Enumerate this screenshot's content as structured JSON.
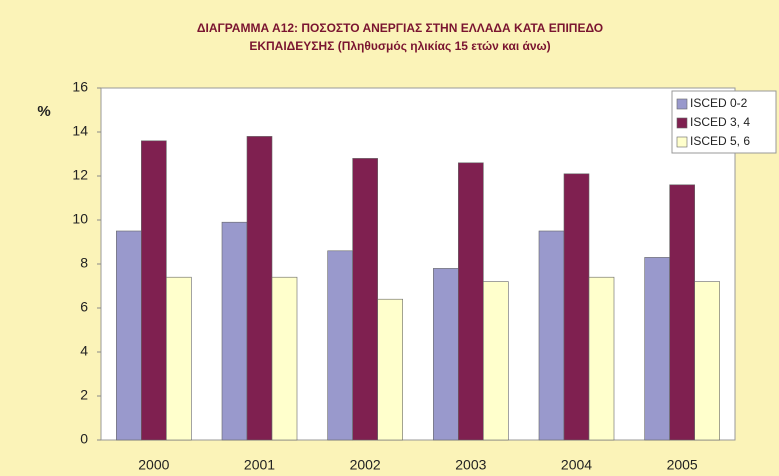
{
  "chart_data": {
    "type": "bar",
    "title": [
      "ΔΙΑΓΡΑΜΜΑ Α12: ΠΟΣΟΣΤΟ ΑΝΕΡΓΙΑΣ ΣΤΗΝ ΕΛΛΑΔΑ ΚΑΤΑ ΕΠΙΠΕΔΟ",
      "ΕΚΠΑΙΔΕΥΣΗΣ (Πληθυσμός ηλικίας 15 ετών και άνω)"
    ],
    "y_label": "%",
    "categories": [
      "2000",
      "2001",
      "2002",
      "2003",
      "2004",
      "2005"
    ],
    "series": [
      {
        "name": "ISCED 0-2",
        "color": "#9999cc",
        "values": [
          9.5,
          9.9,
          8.6,
          7.8,
          9.5,
          8.3
        ]
      },
      {
        "name": "ISCED 3, 4",
        "color": "#7f2050",
        "values": [
          13.6,
          13.8,
          12.8,
          12.6,
          12.1,
          11.6
        ]
      },
      {
        "name": "ISCED 5, 6",
        "color": "#ffffcc",
        "values": [
          7.4,
          7.4,
          6.4,
          7.2,
          7.4,
          7.2
        ]
      }
    ],
    "ylim": [
      0,
      16
    ],
    "yticks": [
      0,
      2,
      4,
      6,
      8,
      10,
      12,
      14,
      16
    ],
    "legend": "top-right"
  }
}
